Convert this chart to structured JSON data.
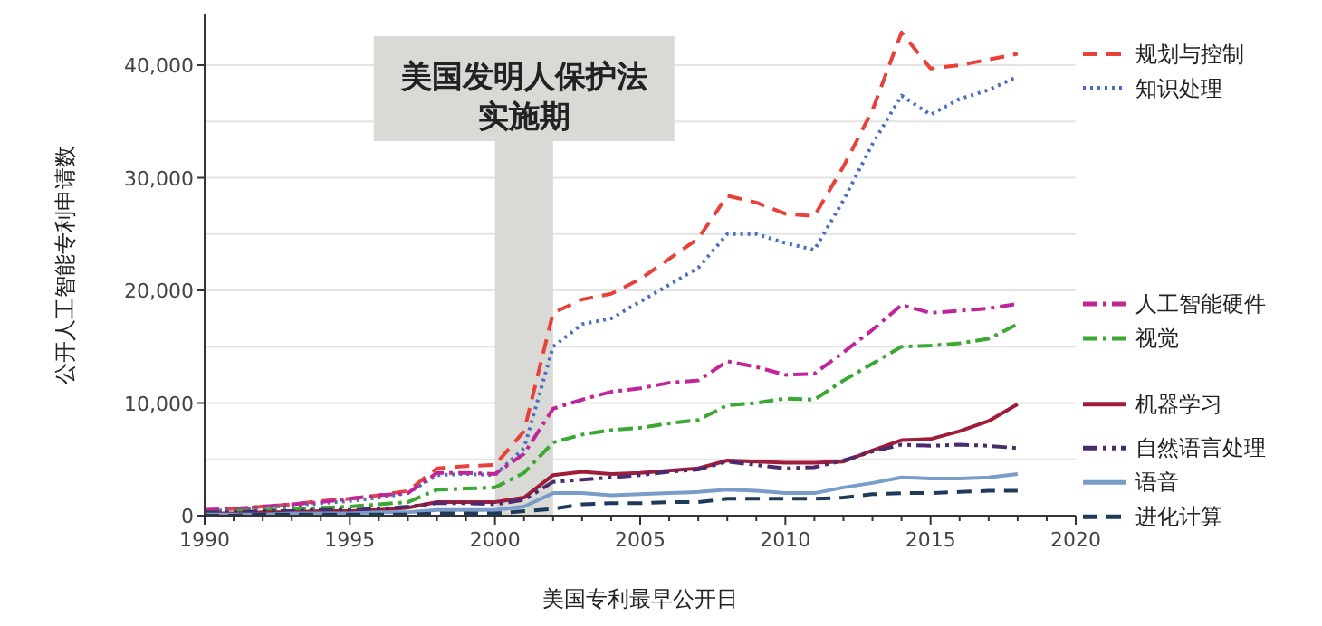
{
  "chart_data": {
    "type": "line",
    "xlabel": "美国专利最早公开日",
    "ylabel": "公开人工智能专利申请数",
    "x": [
      1990,
      1991,
      1992,
      1993,
      1994,
      1995,
      1996,
      1997,
      1998,
      1999,
      2000,
      2001,
      2002,
      2003,
      2004,
      2005,
      2006,
      2007,
      2008,
      2009,
      2010,
      2011,
      2012,
      2013,
      2014,
      2015,
      2016,
      2017,
      2018
    ],
    "series": [
      {
        "name": "规划与控制",
        "color": "#e8413a",
        "line_style": "dashed",
        "values": [
          500,
          600,
          800,
          1000,
          1300,
          1500,
          1800,
          2200,
          4200,
          4400,
          4500,
          7500,
          18000,
          19200,
          19700,
          21000,
          22800,
          24600,
          28400,
          27800,
          26800,
          26600,
          31000,
          36000,
          42900,
          39700,
          40000,
          40500,
          41000
        ]
      },
      {
        "name": "知识处理",
        "color": "#4a6fc0",
        "line_style": "dotted",
        "values": [
          400,
          500,
          700,
          900,
          1100,
          1300,
          1600,
          2000,
          3600,
          3700,
          3600,
          6000,
          15000,
          17000,
          17500,
          19000,
          20500,
          22000,
          25000,
          25000,
          24200,
          23600,
          28000,
          33000,
          37300,
          35600,
          37000,
          37800,
          39000
        ]
      },
      {
        "name": "人工智能硬件",
        "color": "#c0269a",
        "line_style": "dashdot",
        "values": [
          500,
          600,
          800,
          1000,
          1200,
          1500,
          1800,
          2000,
          3800,
          3800,
          3700,
          5500,
          9500,
          10300,
          11000,
          11300,
          11800,
          12000,
          13700,
          13200,
          12500,
          12600,
          14500,
          16500,
          18700,
          18000,
          18200,
          18400,
          18800
        ]
      },
      {
        "name": "视觉",
        "color": "#3aa832",
        "line_style": "dashdot",
        "values": [
          300,
          400,
          500,
          600,
          700,
          800,
          1000,
          1200,
          2300,
          2400,
          2500,
          3800,
          6500,
          7200,
          7600,
          7800,
          8200,
          8500,
          9800,
          10000,
          10400,
          10300,
          12000,
          13500,
          15000,
          15100,
          15300,
          15700,
          17000
        ]
      },
      {
        "name": "机器学习",
        "color": "#a01d3a",
        "line_style": "solid",
        "values": [
          200,
          200,
          300,
          300,
          400,
          400,
          500,
          700,
          1200,
          1200,
          1200,
          1600,
          3600,
          3900,
          3700,
          3800,
          4000,
          4200,
          4900,
          4800,
          4700,
          4700,
          4800,
          5800,
          6700,
          6800,
          7500,
          8400,
          9900
        ]
      },
      {
        "name": "自然语言处理",
        "color": "#4b2a6e",
        "line_style": "dashdotdot",
        "values": [
          300,
          300,
          400,
          400,
          500,
          500,
          600,
          800,
          1100,
          1100,
          1000,
          1400,
          3000,
          3200,
          3400,
          3600,
          3900,
          4100,
          4800,
          4500,
          4200,
          4300,
          4900,
          5700,
          6300,
          6200,
          6300,
          6200,
          6000
        ]
      },
      {
        "name": "语音",
        "color": "#7a9cc8",
        "line_style": "solid",
        "values": [
          100,
          100,
          100,
          200,
          200,
          200,
          300,
          300,
          500,
          500,
          500,
          800,
          2000,
          2000,
          1800,
          1900,
          2000,
          2100,
          2300,
          2200,
          2000,
          2000,
          2500,
          2900,
          3400,
          3300,
          3300,
          3400,
          3700
        ]
      },
      {
        "name": "进化计算",
        "color": "#1d3a5a",
        "line_style": "dashed",
        "values": [
          0,
          0,
          100,
          100,
          100,
          100,
          100,
          100,
          200,
          200,
          200,
          400,
          600,
          1000,
          1100,
          1100,
          1200,
          1200,
          1500,
          1500,
          1500,
          1500,
          1600,
          1900,
          2000,
          2000,
          2100,
          2200,
          2200
        ]
      }
    ],
    "xlim": [
      1990,
      2020
    ],
    "xticks": [
      1990,
      {
        "value": 1991,
        "label": null
      },
      {
        "value": 1992,
        "label": null
      },
      {
        "value": 1993,
        "label": null
      },
      {
        "value": 1994,
        "label": null
      },
      1995,
      {
        "value": 1996,
        "label": null
      },
      {
        "value": 1997,
        "label": null
      },
      {
        "value": 1998,
        "label": null
      },
      {
        "value": 1999,
        "label": null
      },
      2000,
      {
        "value": 2001,
        "label": null
      },
      {
        "value": 2002,
        "label": null
      },
      {
        "value": 2003,
        "label": null
      },
      {
        "value": 2004,
        "label": null
      },
      2005,
      {
        "value": 2006,
        "label": null
      },
      {
        "value": 2007,
        "label": null
      },
      {
        "value": 2008,
        "label": null
      },
      {
        "value": 2009,
        "label": null
      },
      2010,
      {
        "value": 2011,
        "label": null
      },
      {
        "value": 2012,
        "label": null
      },
      {
        "value": 2013,
        "label": null
      },
      {
        "value": 2014,
        "label": null
      },
      2015,
      {
        "value": 2016,
        "label": null
      },
      {
        "value": 2017,
        "label": null
      },
      {
        "value": 2018,
        "label": null
      },
      {
        "value": 2019,
        "label": null
      },
      2020
    ],
    "ylim": [
      0,
      44500
    ],
    "yticks": [
      {
        "value": 0,
        "label": "0"
      },
      {
        "value": 5000,
        "label": null
      },
      {
        "value": 10000,
        "label": "10,000"
      },
      {
        "value": 15000,
        "label": null
      },
      {
        "value": 20000,
        "label": "20,000"
      },
      {
        "value": 25000,
        "label": null
      },
      {
        "value": 30000,
        "label": "30,000"
      },
      {
        "value": 35000,
        "label": null
      },
      {
        "value": 40000,
        "label": "40,000"
      }
    ],
    "grid": "y",
    "legend": "right",
    "bands": [
      {
        "axis": "x",
        "from": 2000,
        "to": 2002,
        "label": "美国发明人保护法实施期",
        "color": "#d9d9d6"
      }
    ]
  }
}
